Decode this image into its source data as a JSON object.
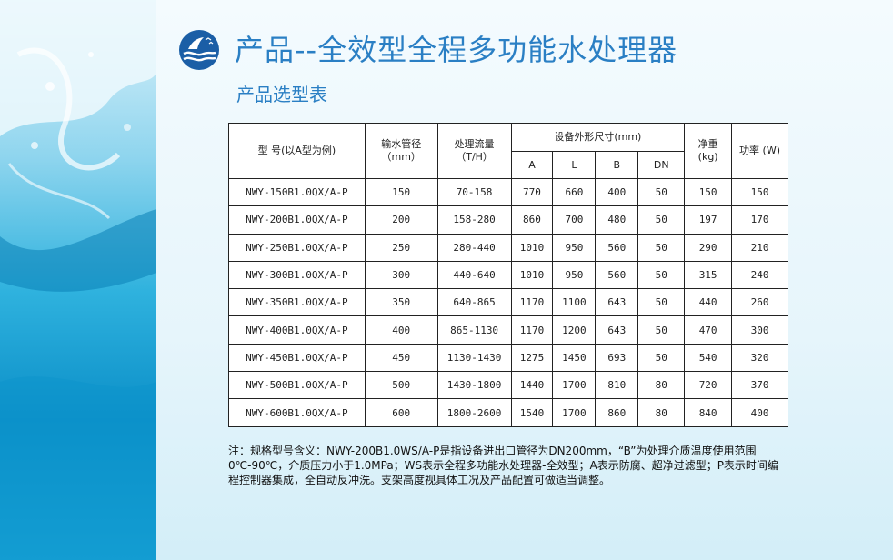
{
  "title": "产品--全效型全程多功能水处理器",
  "subtitle": "产品选型表",
  "table": {
    "headers": {
      "model": "型 号(以A型为例)",
      "pipe_diameter": [
        "输水管径",
        "（mm）"
      ],
      "flow": [
        "处理流量",
        "（T/H）"
      ],
      "dimensions": "设备外形尺寸(mm)",
      "dim_cols": [
        "A",
        "L",
        "B",
        "DN"
      ],
      "weight": [
        "净重",
        "(kg)"
      ],
      "power": "功率 (W)"
    },
    "rows": [
      {
        "model": "NWY-150B1.0QX/A-P",
        "pipe": "150",
        "flow": "70-158",
        "a": "770",
        "l": "660",
        "b": "400",
        "dn": "50",
        "weight": "150",
        "power": "150"
      },
      {
        "model": "NWY-200B1.0QX/A-P",
        "pipe": "200",
        "flow": "158-280",
        "a": "860",
        "l": "700",
        "b": "480",
        "dn": "50",
        "weight": "197",
        "power": "170"
      },
      {
        "model": "NWY-250B1.0QX/A-P",
        "pipe": "250",
        "flow": "280-440",
        "a": "1010",
        "l": "950",
        "b": "560",
        "dn": "50",
        "weight": "290",
        "power": "210"
      },
      {
        "model": "NWY-300B1.0QX/A-P",
        "pipe": "300",
        "flow": "440-640",
        "a": "1010",
        "l": "950",
        "b": "560",
        "dn": "50",
        "weight": "315",
        "power": "240"
      },
      {
        "model": "NWY-350B1.0QX/A-P",
        "pipe": "350",
        "flow": "640-865",
        "a": "1170",
        "l": "1100",
        "b": "643",
        "dn": "50",
        "weight": "440",
        "power": "260"
      },
      {
        "model": "NWY-400B1.0QX/A-P",
        "pipe": "400",
        "flow": "865-1130",
        "a": "1170",
        "l": "1200",
        "b": "643",
        "dn": "50",
        "weight": "470",
        "power": "300"
      },
      {
        "model": "NWY-450B1.0QX/A-P",
        "pipe": "450",
        "flow": "1130-1430",
        "a": "1275",
        "l": "1450",
        "b": "693",
        "dn": "50",
        "weight": "540",
        "power": "320"
      },
      {
        "model": "NWY-500B1.0QX/A-P",
        "pipe": "500",
        "flow": "1430-1800",
        "a": "1440",
        "l": "1700",
        "b": "810",
        "dn": "80",
        "weight": "720",
        "power": "370"
      },
      {
        "model": "NWY-600B1.0QX/A-P",
        "pipe": "600",
        "flow": "1800-2600",
        "a": "1540",
        "l": "1700",
        "b": "860",
        "dn": "80",
        "weight": "840",
        "power": "400"
      }
    ]
  },
  "note": "注：规格型号含义：NWY-200B1.0WS/A-P是指设备进出口管径为DN200mm，“B”为处理介质温度使用范围0℃-90℃，介质压力小于1.0MPa；WS表示全程多功能水处理器-全效型；A表示防腐、超净过滤型；P表示时间编程控制器集成，全自动反冲洗。支架高度视具体工况及产品配置可做适当调整。",
  "colors": {
    "title": "#2a7fc4",
    "water_dark": "#0b8fc8",
    "water_light": "#8fd5ee"
  }
}
